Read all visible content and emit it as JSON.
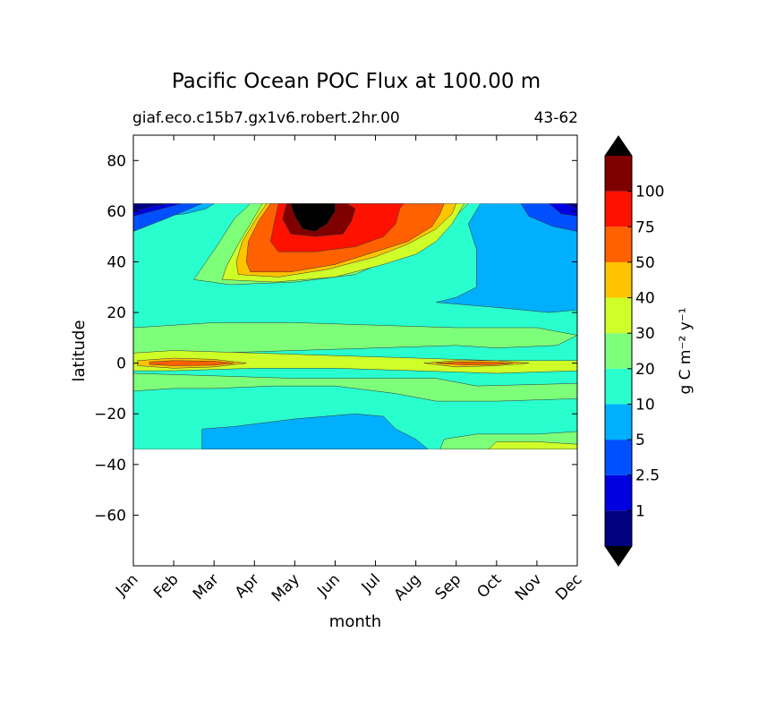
{
  "chart_data": {
    "type": "heatmap",
    "title": "Pacific Ocean POC Flux at 100.00 m",
    "subtitle_left": "giaf.eco.c15b7.gx1v6.robert.2hr.00",
    "subtitle_right": "43-62",
    "xlabel": "month",
    "ylabel": "latitude",
    "xlim": [
      0,
      11
    ],
    "ylim": [
      -80,
      90
    ],
    "x_tick_labels": [
      "Jan",
      "Feb",
      "Mar",
      "Apr",
      "May",
      "Jun",
      "Jul",
      "Aug",
      "Sep",
      "Oct",
      "Nov",
      "Dec"
    ],
    "y_ticks": [
      80,
      60,
      40,
      20,
      0,
      -20,
      -40,
      -60
    ],
    "y_tick_labels": [
      "80",
      "60",
      "40",
      "20",
      "0",
      "−20",
      "−40",
      "−60"
    ],
    "data_extent_latitude": [
      -34,
      63
    ],
    "colorbar": {
      "label": "g C m⁻² y⁻¹",
      "levels": [
        0,
        1,
        2.5,
        5,
        10,
        20,
        30,
        40,
        50,
        75,
        100,
        125
      ],
      "tick_labels": [
        "1",
        "2.5",
        "5",
        "10",
        "20",
        "30",
        "40",
        "50",
        "75",
        "100"
      ],
      "colors": [
        "#000080",
        "#0000e0",
        "#0050ff",
        "#00b0ff",
        "#29ffce",
        "#7dff7a",
        "#ceff29",
        "#ffc400",
        "#ff6000",
        "#ff1100",
        "#800000"
      ],
      "extend_under": "#000000",
      "extend_over": "#000000"
    },
    "regions": [
      {
        "level_index": 4,
        "polygon": [
          [
            0,
            63
          ],
          [
            11,
            63
          ],
          [
            11,
            -34
          ],
          [
            0,
            -34
          ]
        ]
      },
      {
        "level_index": 3,
        "polygon": [
          [
            0,
            22
          ],
          [
            0,
            55
          ],
          [
            0.7,
            58
          ],
          [
            1.3,
            59
          ],
          [
            1.8,
            61
          ],
          [
            2.0,
            63
          ],
          [
            0,
            63
          ]
        ]
      },
      {
        "level_index": 3,
        "polygon": [
          [
            8.6,
            63
          ],
          [
            11,
            63
          ],
          [
            11,
            21
          ],
          [
            10.3,
            20
          ],
          [
            9.0,
            22
          ],
          [
            7.5,
            24
          ],
          [
            8.0,
            26
          ],
          [
            8.5,
            30
          ],
          [
            8.5,
            45
          ],
          [
            8.3,
            55
          ]
        ]
      },
      {
        "level_index": 3,
        "polygon": [
          [
            1.7,
            -26
          ],
          [
            2.5,
            -25
          ],
          [
            4.0,
            -22
          ],
          [
            5.5,
            -20
          ],
          [
            6.2,
            -21
          ],
          [
            6.5,
            -26
          ],
          [
            7.0,
            -30
          ],
          [
            7.3,
            -34
          ],
          [
            1.7,
            -34
          ]
        ]
      },
      {
        "level_index": 3,
        "polygon": [
          [
            0,
            -34
          ],
          [
            0,
            -35
          ],
          [
            0,
            -34
          ]
        ]
      },
      {
        "level_index": 2,
        "polygon": [
          [
            0,
            63
          ],
          [
            0,
            52
          ],
          [
            0.8,
            57
          ],
          [
            1.4,
            61
          ],
          [
            1.7,
            63
          ]
        ]
      },
      {
        "level_index": 2,
        "polygon": [
          [
            9.6,
            63
          ],
          [
            9.8,
            58
          ],
          [
            10.4,
            54
          ],
          [
            11,
            52
          ],
          [
            11,
            63
          ]
        ]
      },
      {
        "level_index": 1,
        "polygon": [
          [
            0,
            63
          ],
          [
            0,
            58
          ],
          [
            0.7,
            61
          ],
          [
            1.2,
            63
          ]
        ]
      },
      {
        "level_index": 1,
        "polygon": [
          [
            10.3,
            63
          ],
          [
            10.6,
            59
          ],
          [
            11,
            58
          ],
          [
            11,
            63
          ]
        ]
      },
      {
        "level_index": 0,
        "polygon": [
          [
            0,
            63
          ],
          [
            0,
            60
          ],
          [
            0.5,
            62
          ],
          [
            0.9,
            63
          ]
        ]
      },
      {
        "level_index": 0,
        "polygon": [
          [
            10.7,
            63
          ],
          [
            11,
            61
          ],
          [
            11,
            63
          ]
        ]
      },
      {
        "level_index": 5,
        "polygon": [
          [
            2.9,
            63
          ],
          [
            2.5,
            57
          ],
          [
            2.1,
            47
          ],
          [
            1.8,
            40
          ],
          [
            1.5,
            33
          ],
          [
            2.4,
            31
          ],
          [
            4.0,
            32
          ],
          [
            5.5,
            35
          ],
          [
            6.5,
            42
          ],
          [
            7.5,
            49
          ],
          [
            7.8,
            55
          ],
          [
            8.3,
            63
          ]
        ]
      },
      {
        "level_index": 5,
        "polygon": [
          [
            0,
            14
          ],
          [
            2,
            16
          ],
          [
            4,
            16
          ],
          [
            6,
            15
          ],
          [
            8,
            14
          ],
          [
            10,
            14
          ],
          [
            11,
            11
          ],
          [
            10.5,
            7
          ],
          [
            9,
            6
          ],
          [
            8,
            7
          ],
          [
            6,
            6
          ],
          [
            4,
            5
          ],
          [
            2,
            4
          ],
          [
            0,
            4
          ]
        ]
      },
      {
        "level_index": 5,
        "polygon": [
          [
            0,
            -4
          ],
          [
            2,
            -5
          ],
          [
            4,
            -6
          ],
          [
            6,
            -6
          ],
          [
            7.5,
            -6
          ],
          [
            8.5,
            -9
          ],
          [
            11,
            -8
          ],
          [
            11,
            -14
          ],
          [
            9,
            -15
          ],
          [
            7.5,
            -15
          ],
          [
            6.5,
            -12
          ],
          [
            5,
            -9
          ],
          [
            3.5,
            -9
          ],
          [
            2,
            -10
          ],
          [
            1,
            -10
          ],
          [
            0,
            -11
          ]
        ]
      },
      {
        "level_index": 5,
        "polygon": [
          [
            7.6,
            -34
          ],
          [
            7.7,
            -30
          ],
          [
            8.5,
            -28
          ],
          [
            10,
            -28
          ],
          [
            11,
            -27
          ],
          [
            11,
            -34
          ]
        ]
      },
      {
        "level_index": 6,
        "polygon": [
          [
            3.2,
            63
          ],
          [
            2.9,
            55
          ],
          [
            2.6,
            47
          ],
          [
            2.3,
            38
          ],
          [
            2.2,
            33
          ],
          [
            3.5,
            32
          ],
          [
            5.0,
            34
          ],
          [
            6.2,
            39
          ],
          [
            7.0,
            43
          ],
          [
            7.5,
            48
          ],
          [
            7.9,
            55
          ],
          [
            8.2,
            63
          ]
        ]
      },
      {
        "level_index": 6,
        "polygon": [
          [
            0,
            4
          ],
          [
            1,
            5
          ],
          [
            3,
            4
          ],
          [
            5,
            3
          ],
          [
            7,
            2
          ],
          [
            9,
            1
          ],
          [
            11,
            1
          ],
          [
            11,
            -3
          ],
          [
            9,
            -4
          ],
          [
            7,
            -3
          ],
          [
            5,
            -2
          ],
          [
            3,
            -2
          ],
          [
            1,
            -3
          ],
          [
            0,
            -3
          ]
        ]
      },
      {
        "level_index": 6,
        "polygon": [
          [
            8.8,
            -34
          ],
          [
            9.0,
            -31
          ],
          [
            10,
            -31
          ],
          [
            11,
            -32
          ],
          [
            11,
            -34
          ]
        ]
      },
      {
        "level_index": 7,
        "polygon": [
          [
            3.3,
            63
          ],
          [
            3.0,
            56
          ],
          [
            2.7,
            48
          ],
          [
            2.55,
            40
          ],
          [
            2.6,
            35
          ],
          [
            3.6,
            34
          ],
          [
            4.8,
            37
          ],
          [
            6.0,
            42
          ],
          [
            6.8,
            47
          ],
          [
            7.5,
            53
          ],
          [
            7.9,
            59
          ],
          [
            8.0,
            63
          ]
        ]
      },
      {
        "level_index": 7,
        "polygon": [
          [
            0.1,
            1
          ],
          [
            1,
            2
          ],
          [
            2,
            1.5
          ],
          [
            2.8,
            0
          ],
          [
            2,
            -1.5
          ],
          [
            1,
            -2
          ],
          [
            0.1,
            -1
          ]
        ]
      },
      {
        "level_index": 7,
        "polygon": [
          [
            7.2,
            0
          ],
          [
            8,
            1
          ],
          [
            9,
            1
          ],
          [
            9.8,
            0
          ],
          [
            9,
            -1
          ],
          [
            8,
            -1.5
          ]
        ]
      },
      {
        "level_index": 8,
        "polygon": [
          [
            3.4,
            63
          ],
          [
            3.1,
            56
          ],
          [
            2.85,
            48
          ],
          [
            2.8,
            40
          ],
          [
            2.9,
            36
          ],
          [
            3.9,
            36
          ],
          [
            5.0,
            39
          ],
          [
            6.0,
            44
          ],
          [
            6.8,
            48
          ],
          [
            7.4,
            54
          ],
          [
            7.6,
            59
          ],
          [
            7.7,
            63
          ]
        ]
      },
      {
        "level_index": 8,
        "polygon": [
          [
            0.4,
            0.5
          ],
          [
            1,
            1
          ],
          [
            2,
            0.8
          ],
          [
            2.5,
            0
          ],
          [
            2,
            -0.8
          ],
          [
            1,
            -1
          ],
          [
            0.4,
            -0.5
          ]
        ]
      },
      {
        "level_index": 8,
        "polygon": [
          [
            7.5,
            0
          ],
          [
            8.2,
            0.5
          ],
          [
            9,
            0.3
          ],
          [
            9.4,
            0
          ],
          [
            9,
            -0.5
          ],
          [
            8.2,
            -0.7
          ]
        ]
      },
      {
        "level_index": 9,
        "polygon": [
          [
            3.6,
            63
          ],
          [
            3.5,
            56
          ],
          [
            3.4,
            48
          ],
          [
            3.6,
            44
          ],
          [
            4.5,
            44
          ],
          [
            5.5,
            46
          ],
          [
            6.2,
            50
          ],
          [
            6.5,
            55
          ],
          [
            6.6,
            61
          ],
          [
            6.7,
            63
          ]
        ]
      },
      {
        "level_index": 10,
        "polygon": [
          [
            3.8,
            63
          ],
          [
            3.7,
            57
          ],
          [
            3.9,
            51
          ],
          [
            4.5,
            50
          ],
          [
            5.2,
            51
          ],
          [
            5.4,
            56
          ],
          [
            5.5,
            61
          ],
          [
            5.3,
            63
          ]
        ]
      },
      {
        "level_index": 11,
        "polygon": [
          [
            3.9,
            63
          ],
          [
            4.0,
            58
          ],
          [
            4.2,
            53
          ],
          [
            4.5,
            52
          ],
          [
            4.8,
            55
          ],
          [
            5.0,
            60
          ],
          [
            5.0,
            63
          ]
        ]
      }
    ]
  }
}
